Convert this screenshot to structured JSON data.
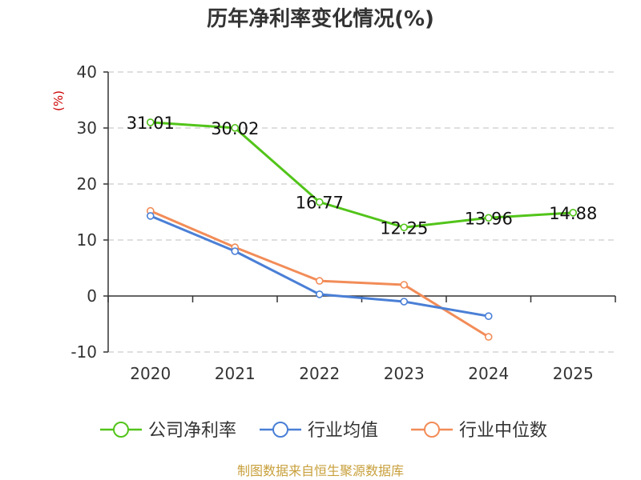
{
  "chart_data": {
    "type": "line",
    "title": "历年净利率变化情况(%)",
    "ylabel": "(%)",
    "xlabel": "",
    "categories": [
      "2020",
      "2021",
      "2022",
      "2023",
      "2024",
      "2025"
    ],
    "y_ticks": [
      "40",
      "30",
      "20",
      "10",
      "0",
      "-10"
    ],
    "ylim": [
      -10,
      40
    ],
    "grid": true,
    "legend_position": "bottom",
    "series": [
      {
        "name": "公司净利率",
        "color": "#52c41a",
        "values": [
          31.01,
          30.02,
          16.77,
          12.25,
          13.96,
          14.88
        ],
        "labels": [
          "31.01",
          "30.02",
          "16.77",
          "12.25",
          "13.96",
          "14.88"
        ]
      },
      {
        "name": "行业均值",
        "color": "#4a7fd6",
        "values": [
          14.3,
          8.0,
          0.3,
          -1.0,
          -3.6,
          null
        ]
      },
      {
        "name": "行业中位数",
        "color": "#f28c58",
        "values": [
          15.2,
          8.7,
          2.7,
          2.0,
          -7.3,
          null
        ]
      }
    ]
  },
  "source": "制图数据来自恒生聚源数据库",
  "colors": {
    "title": "#333333",
    "axis": "#333333",
    "grid": "#cccccc",
    "ylabel": "#cc0000",
    "source": "#c8a03c"
  }
}
